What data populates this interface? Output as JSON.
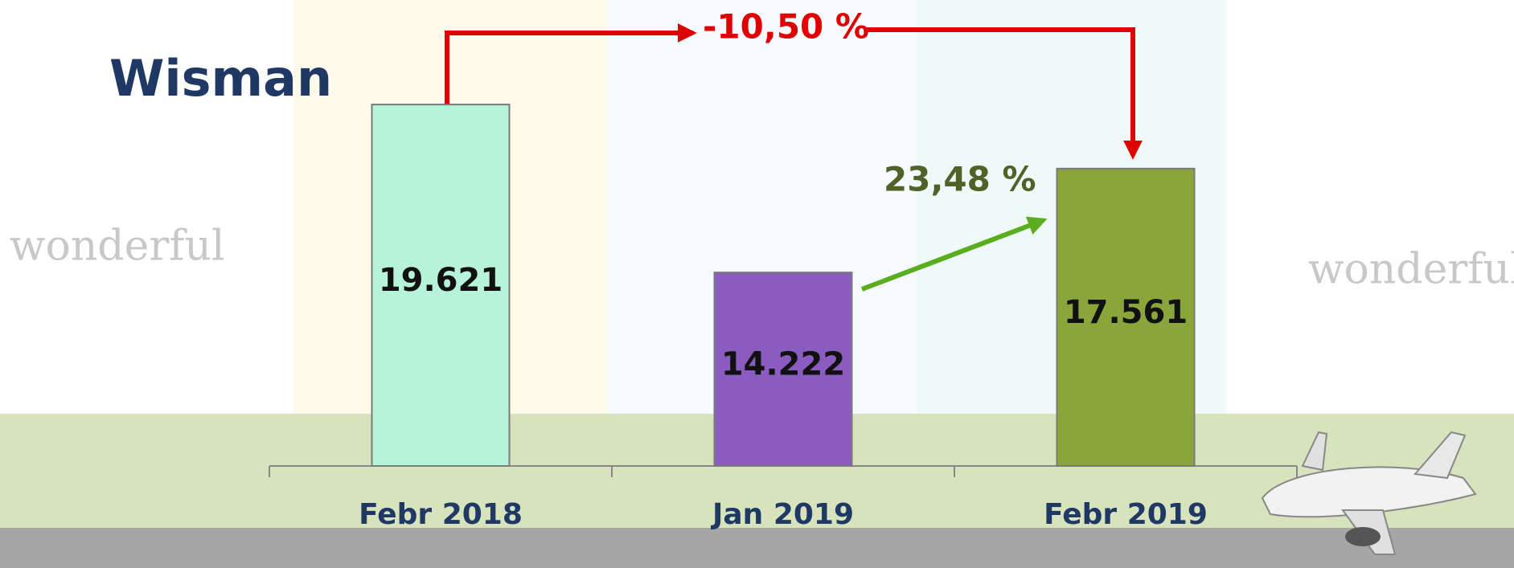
{
  "chart_data": {
    "type": "bar",
    "title": "Wisman",
    "categories": [
      "Febr 2018",
      "Jan 2019",
      "Febr 2019"
    ],
    "values": [
      19621,
      14222,
      17561
    ],
    "value_labels": [
      "19.621",
      "14.222",
      "17.561"
    ],
    "colors": [
      "#b6f3d9",
      "#8a5cc0",
      "#8aa63a"
    ],
    "ylim": [
      8000,
      22000
    ],
    "annotations": [
      {
        "text": "-10,50 %",
        "color": "#e00000"
      },
      {
        "text": "23,48 %",
        "color": "#4f6228"
      }
    ],
    "watermarks": [
      "wonderful",
      "wonderful"
    ]
  }
}
